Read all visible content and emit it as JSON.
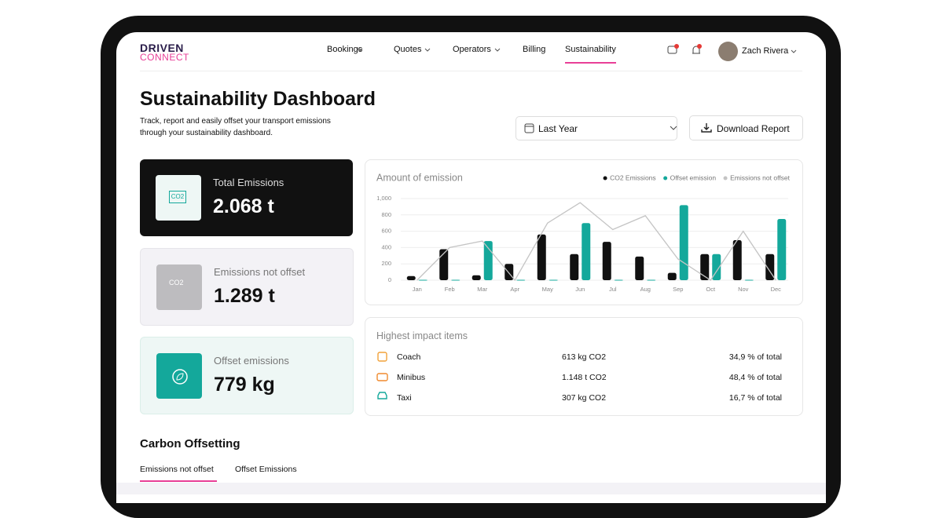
{
  "nav": {
    "logo_top": "DRIVEN",
    "logo_bottom": "CONNECT",
    "items": [
      "Bookings",
      "Quotes",
      "Operators",
      "Billing",
      "Sustainability"
    ],
    "user": "Zach Rivera"
  },
  "header": {
    "title": "Sustainability Dashboard",
    "subtitle_1": "Track, report and easily offset your transport emissions",
    "subtitle_2": "through your sustainability dashboard.",
    "period": "Last Year",
    "download": "Download Report"
  },
  "cards": [
    {
      "label": "Total Emissions",
      "value": "2.068 t",
      "icon_text": "CO2"
    },
    {
      "label": "Emissions not offset",
      "value": "1.289 t",
      "icon_text": "CO2"
    },
    {
      "label": "Offset emissions",
      "value": "779 kg"
    }
  ],
  "chart_data": {
    "type": "bar",
    "title": "Amount of emission",
    "categories": [
      "Jan",
      "Feb",
      "Mar",
      "Apr",
      "May",
      "Jun",
      "Jul",
      "Aug",
      "Sep",
      "Oct",
      "Nov",
      "Dec"
    ],
    "series": [
      {
        "name": "CO2 Emissions",
        "type": "bar",
        "color": "#111111",
        "values": [
          50,
          380,
          60,
          200,
          560,
          320,
          470,
          290,
          90,
          320,
          490,
          320
        ]
      },
      {
        "name": "Offset emission",
        "type": "bar",
        "color": "#14a89b",
        "values": [
          5,
          5,
          480,
          5,
          5,
          700,
          5,
          5,
          920,
          320,
          5,
          750
        ]
      },
      {
        "name": "Emissions not offset",
        "type": "line",
        "color": "#c4c4c4",
        "values": [
          0,
          400,
          480,
          0,
          700,
          950,
          620,
          790,
          260,
          0,
          600,
          0
        ]
      }
    ],
    "ylim": [
      0,
      1000
    ],
    "yticks": [
      0,
      200,
      400,
      600,
      800,
      {
        "value": 1000,
        "label": "1,000"
      }
    ],
    "grid": true,
    "legend": "top-right"
  },
  "impact": {
    "title": "Highest impact items",
    "rows": [
      [
        "Coach",
        "613 kg CO2",
        "34,9 % of total"
      ],
      [
        "Minibus",
        "1.148 t CO2",
        "48,4 % of total"
      ],
      [
        "Taxi",
        "307 kg CO2",
        "16,7 % of total"
      ]
    ]
  },
  "offsetting": {
    "title": "Carbon Offsetting",
    "tabs": [
      "Emissions not offset",
      "Offset Emissions"
    ]
  }
}
